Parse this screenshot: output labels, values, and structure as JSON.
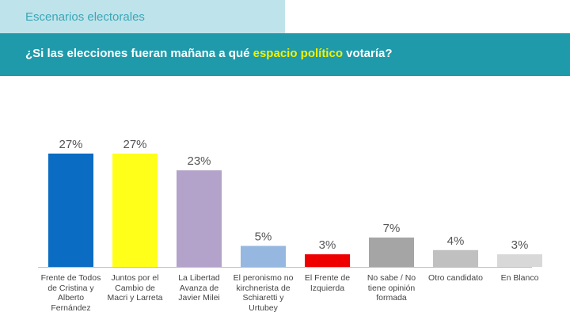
{
  "header": {
    "section_title": "Escenarios electorales",
    "question_pre": "¿Si las elecciones fueran mañana a qué ",
    "question_highlight": "espacio político",
    "question_post": " votaría?"
  },
  "chart_data": {
    "type": "bar",
    "categories": [
      "Frente de Todos de Cristina y Alberto Fernández",
      "Juntos por el Cambio de Macri y Larreta",
      "La Libertad Avanza de Javier Milei",
      "El peronismo no kirchnerista de Schiaretti y Urtubey",
      "El Frente de Izquierda",
      "No sabe / No tiene opinión formada",
      "Otro candidato",
      "En Blanco"
    ],
    "values": [
      27,
      27,
      23,
      5,
      3,
      7,
      4,
      3
    ],
    "value_labels": [
      "27%",
      "27%",
      "23%",
      "5%",
      "3%",
      "7%",
      "4%",
      "3%"
    ],
    "colors": [
      "#0a6cc2",
      "#ffff1a",
      "#b3a2c9",
      "#96b8e0",
      "#ee0000",
      "#a5a5a5",
      "#c0c0c0",
      "#d8d8d8"
    ],
    "ylim": [
      0,
      30
    ],
    "grid": false,
    "legend": "none"
  }
}
